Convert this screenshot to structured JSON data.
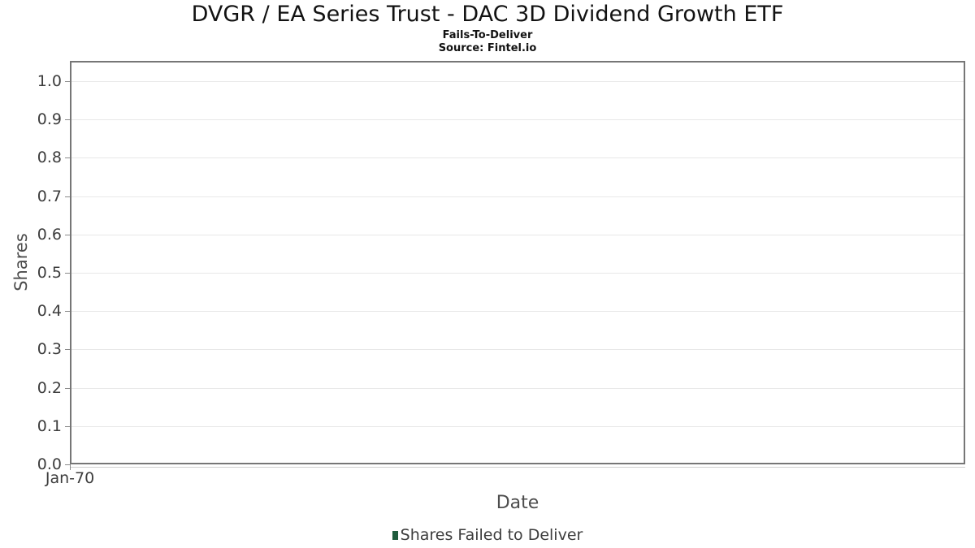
{
  "header": {
    "title": "DVGR / EA Series Trust - DAC 3D Dividend Growth ETF",
    "subtitle": "Fails-To-Deliver",
    "source": "Source: Fintel.io"
  },
  "chart_data": {
    "type": "bar",
    "title": "DVGR / EA Series Trust - DAC 3D Dividend Growth ETF",
    "subtitle": "Fails-To-Deliver",
    "source": "Source: Fintel.io",
    "xlabel": "Date",
    "ylabel": "Shares",
    "xticks": [
      "Jan-70"
    ],
    "yticks": [
      0.0,
      0.1,
      0.2,
      0.3,
      0.4,
      0.5,
      0.6,
      0.7,
      0.8,
      0.9,
      1.0
    ],
    "ytick_labels": [
      "0.0",
      "0.1",
      "0.2",
      "0.3",
      "0.4",
      "0.5",
      "0.6",
      "0.7",
      "0.8",
      "0.9",
      "1.0"
    ],
    "ylim": [
      0.0,
      1.053
    ],
    "grid": true,
    "legend_position": "bottom",
    "series": [
      {
        "name": "Shares Failed to Deliver",
        "color": "#1f5c3d",
        "x": [],
        "values": []
      }
    ]
  },
  "legend": {
    "items": [
      {
        "label": "Shares Failed to Deliver",
        "color": "#1f5c3d"
      }
    ]
  },
  "colors": {
    "background": "#ffffff",
    "plot_border": "#767676",
    "gridline": "#e8e8e8",
    "tick_mark": "#8a8a8a",
    "tick_text": "#3d3d3d",
    "axis_label_text": "#4d4d4d",
    "title_text": "#121212",
    "legend_marker": "#1f5c3d"
  }
}
